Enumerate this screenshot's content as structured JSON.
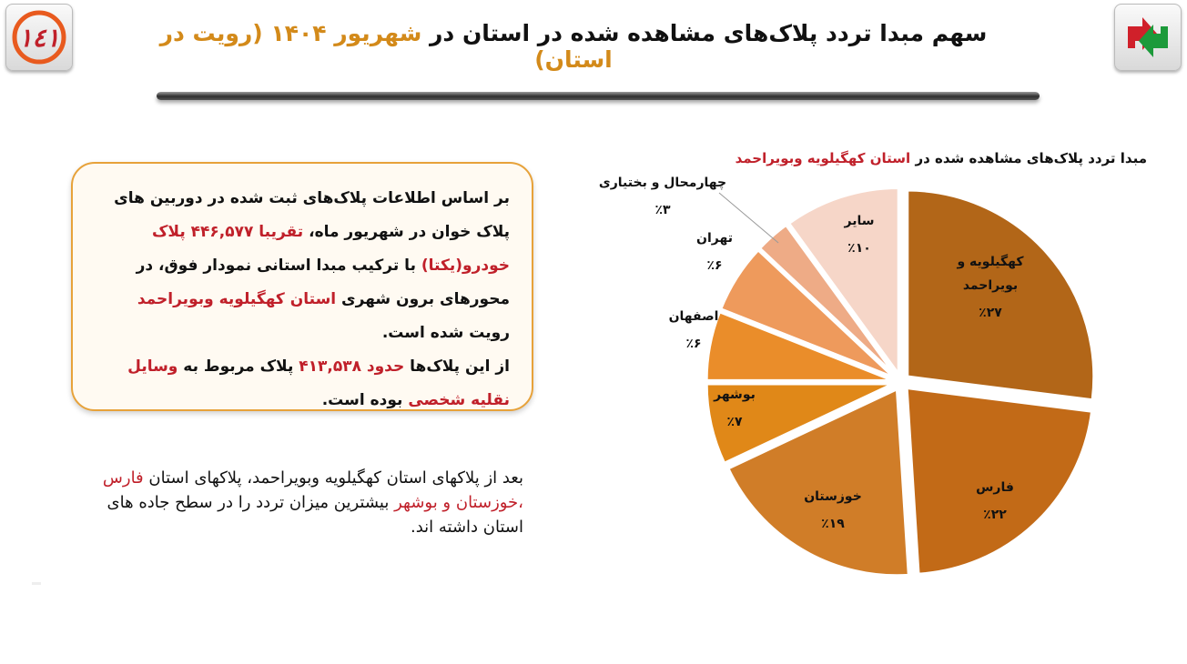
{
  "header": {
    "title_part1": "سهم مبدا تردد پلاک‌های مشاهده شده در استان در",
    "title_part2": "شهریور ۱۴۰۴",
    "title_part3": "(رویت در استان)"
  },
  "logos": {
    "left_text": "۱۴۱",
    "colors": {
      "left_ring": "#e85a1e",
      "right_red": "#d0202a",
      "right_green": "#1c9a3a"
    }
  },
  "infobox": {
    "p1_a": "بر اساس اطلاعات پلاک‌های ثبت شده در دوربین های پلاک خوان در شهریور ماه،",
    "p1_hl": "تقریبا ۴۴۶,۵۷۷ پلاک خودرو(یکتا)",
    "p1_b": "با ترکیب مبدا استانی نمودار فوق، در محورهای برون شهری",
    "p1_hl2": "استان کهگیلویه وبویراحمد",
    "p1_c": "رویت شده است.",
    "p2_a": "از این پلاک‌ها",
    "p2_hl": "حدود ۴۱۳,۵۳۸",
    "p2_b": "پلاک مربوط به",
    "p2_hl2": "وسایل نقلیه شخصی",
    "p2_c": "بوده است."
  },
  "note": {
    "a": "بعد از پلاکهای استان کهگیلویه وبویراحمد، پلاکهای استان",
    "hl": "فارس ،خوزستان و بوشهر",
    "b": "بیشترین میزان تردد را در سطح جاده های استان داشته اند."
  },
  "chart_data": {
    "type": "pie",
    "title_a": "مبدا تردد پلاک‌های مشاهده شده در",
    "title_hl": "استان کهگیلویه وبویراحمد",
    "series": [
      {
        "name": "کهگیلویه و بویراحمد",
        "line1": "کهگیلویه و",
        "line2": "بویراحمد",
        "label": "٪۲۷",
        "value": 27,
        "color": "#b26618"
      },
      {
        "name": "فارس",
        "line1": "فارس",
        "line2": "",
        "label": "٪۲۲",
        "value": 22,
        "color": "#c26a17"
      },
      {
        "name": "خوزستان",
        "line1": "خوزستان",
        "line2": "",
        "label": "٪۱۹",
        "value": 19,
        "color": "#d07d28"
      },
      {
        "name": "بوشهر",
        "line1": "بوشهر",
        "line2": "",
        "label": "٪۷",
        "value": 7,
        "color": "#e08818"
      },
      {
        "name": "اصفهان",
        "line1": "اصفهان",
        "line2": "",
        "label": "٪۶",
        "value": 6,
        "color": "#ea8d2a"
      },
      {
        "name": "تهران",
        "line1": "تهران",
        "line2": "",
        "label": "٪۶",
        "value": 6,
        "color": "#ee9a5c"
      },
      {
        "name": "چهارمحال و بختیاری",
        "line1": "چهارمحال و بختیاری",
        "line2": "",
        "label": "٪۳",
        "value": 3,
        "color": "#eeab86"
      },
      {
        "name": "سایر",
        "line1": "سایر",
        "line2": "",
        "label": "٪۱۰",
        "value": 10,
        "color": "#f6d6c8"
      }
    ]
  }
}
